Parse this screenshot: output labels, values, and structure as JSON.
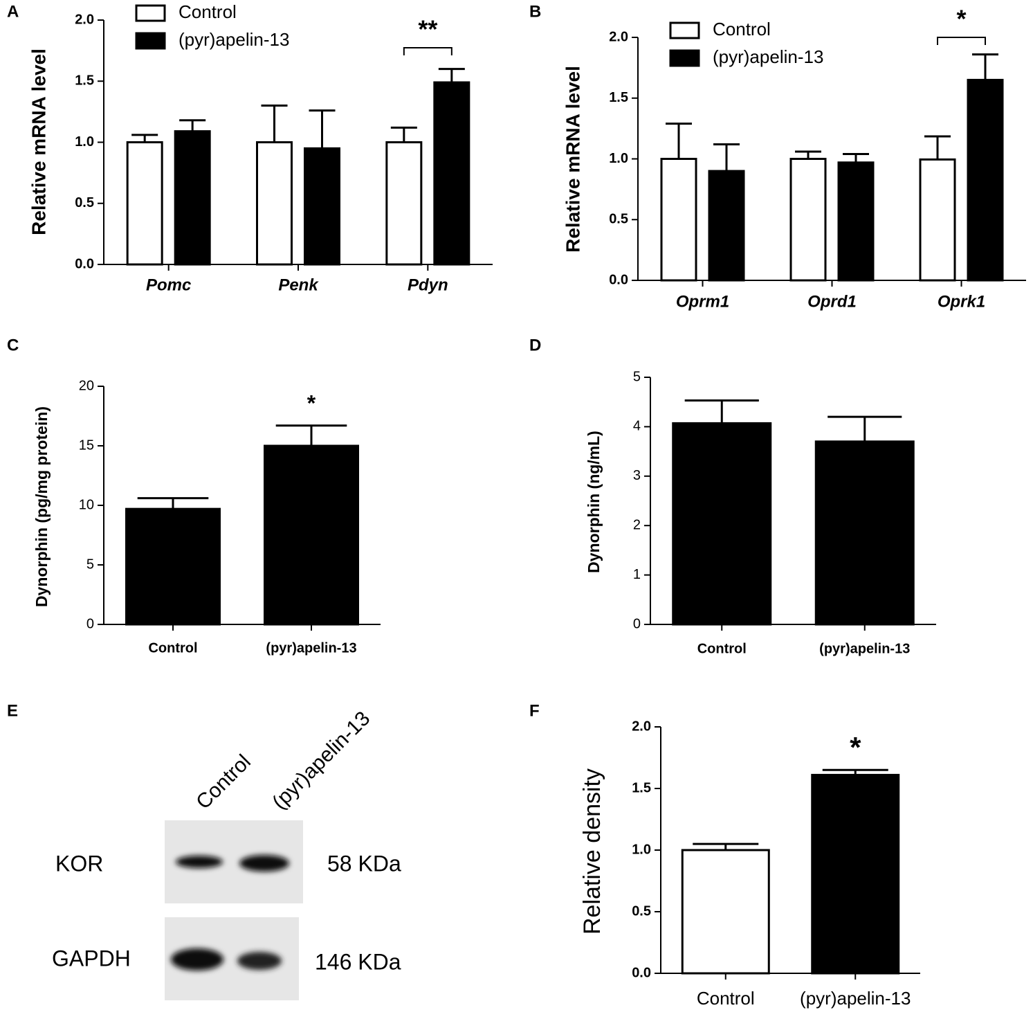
{
  "chart_data": [
    {
      "type": "grouped_bar",
      "panel": "A",
      "ylabel": "Relative mRNA level",
      "categories": [
        "Pomc",
        "Penk",
        "Pdyn"
      ],
      "series": [
        {
          "name": "Control",
          "color": "#ffffff",
          "values": [
            1.0,
            1.0,
            1.0
          ],
          "errors": [
            0.06,
            0.3,
            0.12
          ]
        },
        {
          "name": "(pyr)apelin-13",
          "color": "#000000",
          "values": [
            1.09,
            0.95,
            1.49
          ],
          "errors": [
            0.09,
            0.31,
            0.11
          ]
        }
      ],
      "ylim": [
        0,
        2
      ],
      "yticks": [
        {
          "value": 0,
          "label": "0.0"
        },
        {
          "value": 0.5,
          "label": "0.5"
        },
        {
          "value": 1,
          "label": "1.0"
        },
        {
          "value": 1.5,
          "label": "1.5"
        },
        {
          "value": 2,
          "label": "2.0"
        }
      ],
      "annotations": [
        {
          "text": "**",
          "x": "Pdyn",
          "bracket": true
        }
      ]
    },
    {
      "type": "grouped_bar",
      "panel": "B",
      "ylabel": "Relative mRNA level",
      "categories": [
        "Oprm1",
        "Oprd1",
        "Oprk1"
      ],
      "series": [
        {
          "name": "Control",
          "color": "#ffffff",
          "values": [
            1.0,
            1.0,
            0.995
          ],
          "errors": [
            0.29,
            0.06,
            0.19
          ]
        },
        {
          "name": "(pyr)apelin-13",
          "color": "#000000",
          "values": [
            0.9,
            0.97,
            1.65
          ],
          "errors": [
            0.22,
            0.07,
            0.21
          ]
        }
      ],
      "ylim": [
        0,
        2
      ],
      "yticks": [
        {
          "value": 0,
          "label": "0.0"
        },
        {
          "value": 0.5,
          "label": "0.5"
        },
        {
          "value": 1,
          "label": "1.0"
        },
        {
          "value": 1.5,
          "label": "1.5"
        },
        {
          "value": 2,
          "label": "2.0"
        }
      ],
      "annotations": [
        {
          "text": "*",
          "x": "Oprk1",
          "bracket": true
        }
      ]
    },
    {
      "type": "bar",
      "panel": "C",
      "ylabel": "Dynorphin (pg/mg protein)",
      "categories": [
        "Control",
        "(pyr)apelin-13"
      ],
      "values": [
        9.7,
        15.0
      ],
      "errors": [
        0.9,
        1.7
      ],
      "colors": [
        "#000000",
        "#000000"
      ],
      "ylim": [
        0,
        20
      ],
      "yticks": [
        0,
        5,
        10,
        15,
        20
      ],
      "annotations": [
        {
          "text": "*",
          "x": "(pyr)apelin-13",
          "bracket": false
        }
      ]
    },
    {
      "type": "bar",
      "panel": "D",
      "ylabel": "Dynorphin (ng/mL)",
      "categories": [
        "Control",
        "(pyr)apelin-13"
      ],
      "values": [
        4.07,
        3.7
      ],
      "errors": [
        0.46,
        0.5
      ],
      "colors": [
        "#000000",
        "#000000"
      ],
      "ylim": [
        0,
        5
      ],
      "yticks": [
        0,
        1,
        2,
        3,
        4,
        5
      ],
      "annotations": []
    },
    {
      "type": "bar",
      "panel": "F",
      "ylabel": "Relative density",
      "categories": [
        "Control",
        "(pyr)apelin-13"
      ],
      "values": [
        1.0,
        1.61
      ],
      "errors": [
        0.05,
        0.04
      ],
      "colors": [
        "#ffffff",
        "#000000"
      ],
      "ylim": [
        0,
        2
      ],
      "yticks": [
        {
          "value": 0,
          "label": "0.0"
        },
        {
          "value": 0.5,
          "label": "0.5"
        },
        {
          "value": 1,
          "label": "1.0"
        },
        {
          "value": 1.5,
          "label": "1.5"
        },
        {
          "value": 2,
          "label": "2.0"
        }
      ],
      "annotations": [
        {
          "text": "*",
          "x": "(pyr)apelin-13",
          "bracket": false
        }
      ]
    }
  ],
  "blot": {
    "panel": "E",
    "lanes": [
      "Control",
      "(pyr)apelin-13"
    ],
    "rows": [
      {
        "name": "KOR",
        "size": "58 KDa"
      },
      {
        "name": "GAPDH",
        "size": "146 KDa"
      }
    ]
  }
}
